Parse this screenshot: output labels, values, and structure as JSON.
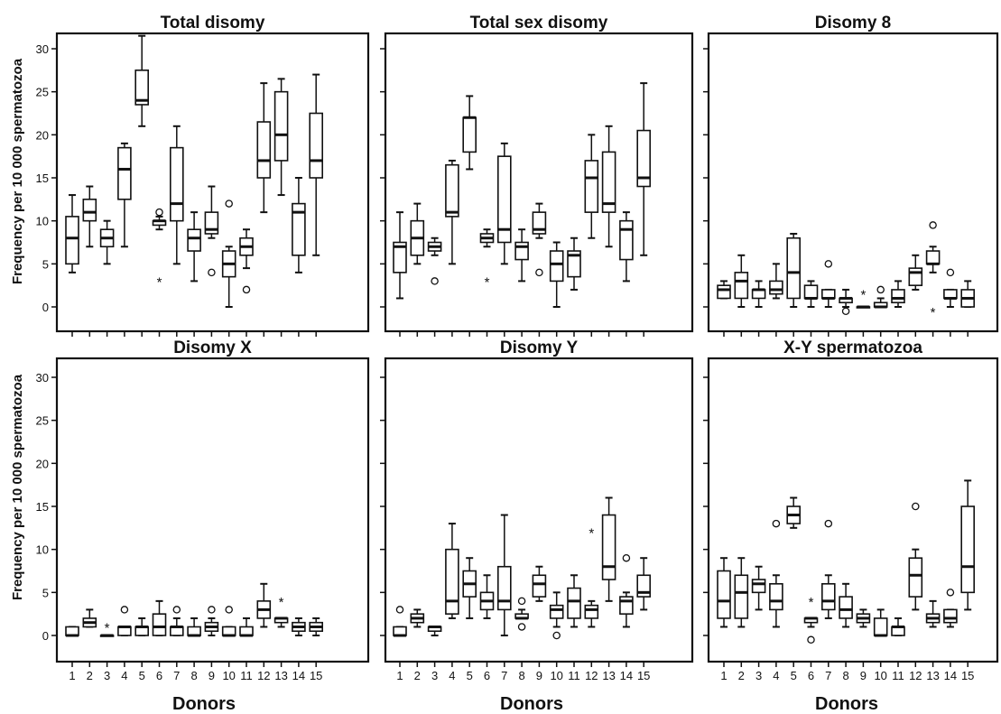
{
  "figure": {
    "y_axis_label": "Frequency per 10 000 spermatozoa",
    "x_axis_label": "Donors"
  },
  "chart_data": [
    {
      "type": "box",
      "title": "Total disomy",
      "xlabel": "Donors",
      "ylabel": "Frequency per 10 000 spermatozoa",
      "ylim": [
        -2,
        31
      ],
      "yticks": [
        0,
        5,
        10,
        15,
        20,
        25,
        30
      ],
      "boxes": [
        {
          "donor": 1,
          "min": 4,
          "q1": 5,
          "median": 8,
          "q3": 10.5,
          "max": 13
        },
        {
          "donor": 2,
          "min": 7,
          "q1": 10,
          "median": 11,
          "q3": 12.5,
          "max": 14
        },
        {
          "donor": 3,
          "min": 5,
          "q1": 7,
          "median": 8,
          "q3": 9,
          "max": 10
        },
        {
          "donor": 4,
          "min": 7,
          "q1": 12.5,
          "median": 16,
          "q3": 18.5,
          "max": 19
        },
        {
          "donor": 5,
          "min": 21,
          "q1": 23.5,
          "median": 24,
          "q3": 27.5,
          "max": 31.5
        },
        {
          "donor": 6,
          "min": 9,
          "q1": 9.5,
          "median": 10,
          "q3": 10,
          "max": 10.5,
          "outliers": [
            {
              "v": 11,
              "s": "circle"
            },
            {
              "v": 3,
              "s": "star"
            }
          ]
        },
        {
          "donor": 7,
          "min": 5,
          "q1": 10,
          "median": 12,
          "q3": 18.5,
          "max": 21
        },
        {
          "donor": 8,
          "min": 3,
          "q1": 6.5,
          "median": 8,
          "q3": 9,
          "max": 11
        },
        {
          "donor": 9,
          "min": 8,
          "q1": 8.5,
          "median": 9,
          "q3": 11,
          "max": 14,
          "outliers": [
            {
              "v": 4,
              "s": "circle"
            }
          ]
        },
        {
          "donor": 10,
          "min": 0,
          "q1": 3.5,
          "median": 5,
          "q3": 6.5,
          "max": 7,
          "outliers": [
            {
              "v": 12,
              "s": "circle"
            }
          ]
        },
        {
          "donor": 11,
          "min": 4.5,
          "q1": 6,
          "median": 7,
          "q3": 8,
          "max": 9,
          "outliers": [
            {
              "v": 2,
              "s": "circle"
            }
          ]
        },
        {
          "donor": 12,
          "min": 11,
          "q1": 15,
          "median": 17,
          "q3": 21.5,
          "max": 26
        },
        {
          "donor": 13,
          "min": 13,
          "q1": 17,
          "median": 20,
          "q3": 25,
          "max": 26.5
        },
        {
          "donor": 14,
          "min": 4,
          "q1": 6,
          "median": 11,
          "q3": 12,
          "max": 15
        },
        {
          "donor": 15,
          "min": 6,
          "q1": 15,
          "median": 17,
          "q3": 22.5,
          "max": 27
        }
      ]
    },
    {
      "type": "box",
      "title": "Total sex disomy",
      "xlabel": "Donors",
      "ylabel": "",
      "ylim": [
        -2,
        31
      ],
      "yticks": [
        0,
        5,
        10,
        15,
        20,
        25,
        30
      ],
      "boxes": [
        {
          "donor": 1,
          "min": 1,
          "q1": 4,
          "median": 7,
          "q3": 7.5,
          "max": 11
        },
        {
          "donor": 2,
          "min": 5,
          "q1": 6,
          "median": 8,
          "q3": 10,
          "max": 12
        },
        {
          "donor": 3,
          "min": 6,
          "q1": 6.5,
          "median": 7,
          "q3": 7.5,
          "max": 8,
          "outliers": [
            {
              "v": 3,
              "s": "circle"
            }
          ]
        },
        {
          "donor": 4,
          "min": 5,
          "q1": 10.5,
          "median": 11,
          "q3": 16.5,
          "max": 17
        },
        {
          "donor": 5,
          "min": 16,
          "q1": 18,
          "median": 22,
          "q3": 22,
          "max": 24.5
        },
        {
          "donor": 6,
          "min": 7,
          "q1": 7.5,
          "median": 8,
          "q3": 8.5,
          "max": 9,
          "outliers": [
            {
              "v": 3,
              "s": "star"
            }
          ]
        },
        {
          "donor": 7,
          "min": 5,
          "q1": 7.5,
          "median": 9,
          "q3": 17.5,
          "max": 19
        },
        {
          "donor": 8,
          "min": 3,
          "q1": 5.5,
          "median": 7,
          "q3": 7.5,
          "max": 9
        },
        {
          "donor": 9,
          "min": 8,
          "q1": 8.5,
          "median": 9,
          "q3": 11,
          "max": 12,
          "outliers": [
            {
              "v": 4,
              "s": "circle"
            }
          ]
        },
        {
          "donor": 10,
          "min": 0,
          "q1": 3,
          "median": 5,
          "q3": 6.5,
          "max": 7.5
        },
        {
          "donor": 11,
          "min": 2,
          "q1": 3.5,
          "median": 6,
          "q3": 6.5,
          "max": 8
        },
        {
          "donor": 12,
          "min": 8,
          "q1": 11,
          "median": 15,
          "q3": 17,
          "max": 20
        },
        {
          "donor": 13,
          "min": 7,
          "q1": 11,
          "median": 12,
          "q3": 18,
          "max": 21
        },
        {
          "donor": 14,
          "min": 3,
          "q1": 5.5,
          "median": 9,
          "q3": 10,
          "max": 11
        },
        {
          "donor": 15,
          "min": 6,
          "q1": 14,
          "median": 15,
          "q3": 20.5,
          "max": 26
        }
      ]
    },
    {
      "type": "box",
      "title": "Disomy 8",
      "xlabel": "Donors",
      "ylabel": "",
      "ylim": [
        -2,
        31
      ],
      "yticks": [
        0,
        5,
        10,
        15,
        20,
        25,
        30
      ],
      "boxes": [
        {
          "donor": 1,
          "min": 1,
          "q1": 1,
          "median": 2,
          "q3": 2.5,
          "max": 3
        },
        {
          "donor": 2,
          "min": 0,
          "q1": 1,
          "median": 3,
          "q3": 4,
          "max": 6
        },
        {
          "donor": 3,
          "min": 0,
          "q1": 1,
          "median": 2,
          "q3": 2,
          "max": 3
        },
        {
          "donor": 4,
          "min": 1,
          "q1": 1.5,
          "median": 2,
          "q3": 3,
          "max": 5
        },
        {
          "donor": 5,
          "min": 0,
          "q1": 1,
          "median": 4,
          "q3": 8,
          "max": 8.5
        },
        {
          "donor": 6,
          "min": 0,
          "q1": 1,
          "median": 1,
          "q3": 2.5,
          "max": 3
        },
        {
          "donor": 7,
          "min": 0,
          "q1": 1,
          "median": 1,
          "q3": 2,
          "max": 2,
          "outliers": [
            {
              "v": 5,
              "s": "circle"
            }
          ]
        },
        {
          "donor": 8,
          "min": 0,
          "q1": 0.5,
          "median": 1,
          "q3": 1,
          "max": 2,
          "outliers": [
            {
              "v": -0.5,
              "s": "circle"
            }
          ]
        },
        {
          "donor": 9,
          "min": 0,
          "q1": 0,
          "median": 0,
          "q3": 0,
          "max": 0,
          "outliers": [
            {
              "v": 1.5,
              "s": "star"
            }
          ]
        },
        {
          "donor": 10,
          "min": 0,
          "q1": 0,
          "median": 0,
          "q3": 0.5,
          "max": 1,
          "outliers": [
            {
              "v": 2,
              "s": "circle"
            }
          ]
        },
        {
          "donor": 11,
          "min": 0,
          "q1": 0.5,
          "median": 1,
          "q3": 2,
          "max": 3
        },
        {
          "donor": 12,
          "min": 2,
          "q1": 2.5,
          "median": 4,
          "q3": 4.5,
          "max": 6
        },
        {
          "donor": 13,
          "min": 4,
          "q1": 5,
          "median": 5,
          "q3": 6.5,
          "max": 7,
          "outliers": [
            {
              "v": 9.5,
              "s": "circle"
            },
            {
              "v": -0.5,
              "s": "star"
            }
          ]
        },
        {
          "donor": 14,
          "min": 0,
          "q1": 1,
          "median": 1,
          "q3": 2,
          "max": 2,
          "outliers": [
            {
              "v": 4,
              "s": "circle"
            }
          ]
        },
        {
          "donor": 15,
          "min": 0,
          "q1": 0,
          "median": 1,
          "q3": 2,
          "max": 3
        }
      ]
    },
    {
      "type": "box",
      "title": "Disomy X",
      "xlabel": "Donors",
      "ylabel": "Frequency per 10 000 spermatozoa",
      "ylim": [
        -2,
        31
      ],
      "yticks": [
        0,
        5,
        10,
        15,
        20,
        25,
        30
      ],
      "boxes": [
        {
          "donor": 1,
          "min": 0,
          "q1": 0,
          "median": 0,
          "q3": 1,
          "max": 1
        },
        {
          "donor": 2,
          "min": 1,
          "q1": 1,
          "median": 1.5,
          "q3": 2,
          "max": 3
        },
        {
          "donor": 3,
          "min": 0,
          "q1": 0,
          "median": 0,
          "q3": 0,
          "max": 0,
          "outliers": [
            {
              "v": 1,
              "s": "star"
            }
          ]
        },
        {
          "donor": 4,
          "min": 0,
          "q1": 0,
          "median": 1,
          "q3": 1,
          "max": 1,
          "outliers": [
            {
              "v": 3,
              "s": "circle"
            }
          ]
        },
        {
          "donor": 5,
          "min": 0,
          "q1": 0,
          "median": 1,
          "q3": 1,
          "max": 2
        },
        {
          "donor": 6,
          "min": 0,
          "q1": 0,
          "median": 1,
          "q3": 2.5,
          "max": 4
        },
        {
          "donor": 7,
          "min": 0,
          "q1": 0,
          "median": 1,
          "q3": 1,
          "max": 2,
          "outliers": [
            {
              "v": 3,
              "s": "circle"
            }
          ]
        },
        {
          "donor": 8,
          "min": 0,
          "q1": 0,
          "median": 0,
          "q3": 1,
          "max": 2
        },
        {
          "donor": 9,
          "min": 0,
          "q1": 0.5,
          "median": 1,
          "q3": 1.5,
          "max": 2,
          "outliers": [
            {
              "v": 3,
              "s": "circle"
            }
          ]
        },
        {
          "donor": 10,
          "min": 0,
          "q1": 0,
          "median": 0,
          "q3": 1,
          "max": 1,
          "outliers": [
            {
              "v": 3,
              "s": "circle"
            }
          ]
        },
        {
          "donor": 11,
          "min": 0,
          "q1": 0,
          "median": 0,
          "q3": 1,
          "max": 2
        },
        {
          "donor": 12,
          "min": 1,
          "q1": 2,
          "median": 3,
          "q3": 4,
          "max": 6
        },
        {
          "donor": 13,
          "min": 1,
          "q1": 1.5,
          "median": 2,
          "q3": 2,
          "max": 2,
          "outliers": [
            {
              "v": 4,
              "s": "star"
            }
          ]
        },
        {
          "donor": 14,
          "min": 0,
          "q1": 0.5,
          "median": 1,
          "q3": 1.5,
          "max": 2
        },
        {
          "donor": 15,
          "min": 0,
          "q1": 0.5,
          "median": 1,
          "q3": 1.5,
          "max": 2
        }
      ]
    },
    {
      "type": "box",
      "title": "Disomy Y",
      "xlabel": "Donors",
      "ylabel": "",
      "ylim": [
        -2,
        31
      ],
      "yticks": [
        0,
        5,
        10,
        15,
        20,
        25,
        30
      ],
      "boxes": [
        {
          "donor": 1,
          "min": 0,
          "q1": 0,
          "median": 0,
          "q3": 1,
          "max": 1,
          "outliers": [
            {
              "v": 3,
              "s": "circle"
            }
          ]
        },
        {
          "donor": 2,
          "min": 1,
          "q1": 1.5,
          "median": 2,
          "q3": 2.5,
          "max": 3
        },
        {
          "donor": 3,
          "min": 0,
          "q1": 0.5,
          "median": 1,
          "q3": 1,
          "max": 1
        },
        {
          "donor": 4,
          "min": 2,
          "q1": 2.5,
          "median": 4,
          "q3": 10,
          "max": 13
        },
        {
          "donor": 5,
          "min": 2,
          "q1": 4.5,
          "median": 6,
          "q3": 7.5,
          "max": 9
        },
        {
          "donor": 6,
          "min": 2,
          "q1": 3,
          "median": 4,
          "q3": 5,
          "max": 7
        },
        {
          "donor": 7,
          "min": 0,
          "q1": 3,
          "median": 4,
          "q3": 8,
          "max": 14
        },
        {
          "donor": 8,
          "min": 2,
          "q1": 2,
          "median": 2,
          "q3": 2.5,
          "max": 3,
          "outliers": [
            {
              "v": 4,
              "s": "circle"
            },
            {
              "v": 1,
              "s": "circle"
            }
          ]
        },
        {
          "donor": 9,
          "min": 4,
          "q1": 4.5,
          "median": 6,
          "q3": 7,
          "max": 8
        },
        {
          "donor": 10,
          "min": 1,
          "q1": 2,
          "median": 3,
          "q3": 3.5,
          "max": 5,
          "outliers": [
            {
              "v": 0,
              "s": "circle"
            }
          ]
        },
        {
          "donor": 11,
          "min": 1,
          "q1": 2,
          "median": 4,
          "q3": 5.5,
          "max": 7
        },
        {
          "donor": 12,
          "min": 1,
          "q1": 2,
          "median": 3,
          "q3": 3.5,
          "max": 4,
          "outliers": [
            {
              "v": 12,
              "s": "star"
            }
          ]
        },
        {
          "donor": 13,
          "min": 4,
          "q1": 6.5,
          "median": 8,
          "q3": 14,
          "max": 16
        },
        {
          "donor": 14,
          "min": 1,
          "q1": 2.5,
          "median": 4,
          "q3": 4.5,
          "max": 5,
          "outliers": [
            {
              "v": 9,
              "s": "circle"
            }
          ]
        },
        {
          "donor": 15,
          "min": 3,
          "q1": 4.5,
          "median": 5,
          "q3": 7,
          "max": 9
        }
      ]
    },
    {
      "type": "box",
      "title": "X-Y spermatozoa",
      "xlabel": "Donors",
      "ylabel": "",
      "ylim": [
        -2,
        31
      ],
      "yticks": [
        0,
        5,
        10,
        15,
        20,
        25,
        30
      ],
      "boxes": [
        {
          "donor": 1,
          "min": 1,
          "q1": 2,
          "median": 4,
          "q3": 7.5,
          "max": 9
        },
        {
          "donor": 2,
          "min": 1,
          "q1": 2,
          "median": 5,
          "q3": 7,
          "max": 9
        },
        {
          "donor": 3,
          "min": 3,
          "q1": 5,
          "median": 6,
          "q3": 6.5,
          "max": 8
        },
        {
          "donor": 4,
          "min": 1,
          "q1": 3,
          "median": 4,
          "q3": 6,
          "max": 7,
          "outliers": [
            {
              "v": 13,
              "s": "circle"
            }
          ]
        },
        {
          "donor": 5,
          "min": 12.5,
          "q1": 13,
          "median": 14,
          "q3": 15,
          "max": 16
        },
        {
          "donor": 6,
          "min": 1,
          "q1": 1.5,
          "median": 2,
          "q3": 2,
          "max": 2,
          "outliers": [
            {
              "v": 4,
              "s": "star"
            },
            {
              "v": -0.5,
              "s": "circle"
            }
          ]
        },
        {
          "donor": 7,
          "min": 2,
          "q1": 3,
          "median": 4,
          "q3": 6,
          "max": 7,
          "outliers": [
            {
              "v": 13,
              "s": "circle"
            }
          ]
        },
        {
          "donor": 8,
          "min": 1,
          "q1": 2,
          "median": 3,
          "q3": 4.5,
          "max": 6
        },
        {
          "donor": 9,
          "min": 1,
          "q1": 1.5,
          "median": 2,
          "q3": 2.5,
          "max": 3
        },
        {
          "donor": 10,
          "min": 0,
          "q1": 0,
          "median": 0,
          "q3": 2,
          "max": 3
        },
        {
          "donor": 11,
          "min": 0,
          "q1": 0,
          "median": 1,
          "q3": 1,
          "max": 2
        },
        {
          "donor": 12,
          "min": 3,
          "q1": 4.5,
          "median": 7,
          "q3": 9,
          "max": 10,
          "outliers": [
            {
              "v": 15,
              "s": "circle"
            }
          ]
        },
        {
          "donor": 13,
          "min": 1,
          "q1": 1.5,
          "median": 2,
          "q3": 2.5,
          "max": 4
        },
        {
          "donor": 14,
          "min": 1,
          "q1": 1.5,
          "median": 2,
          "q3": 3,
          "max": 3,
          "outliers": [
            {
              "v": 5,
              "s": "circle"
            }
          ]
        },
        {
          "donor": 15,
          "min": 3,
          "q1": 5,
          "median": 8,
          "q3": 15,
          "max": 18
        }
      ]
    }
  ]
}
